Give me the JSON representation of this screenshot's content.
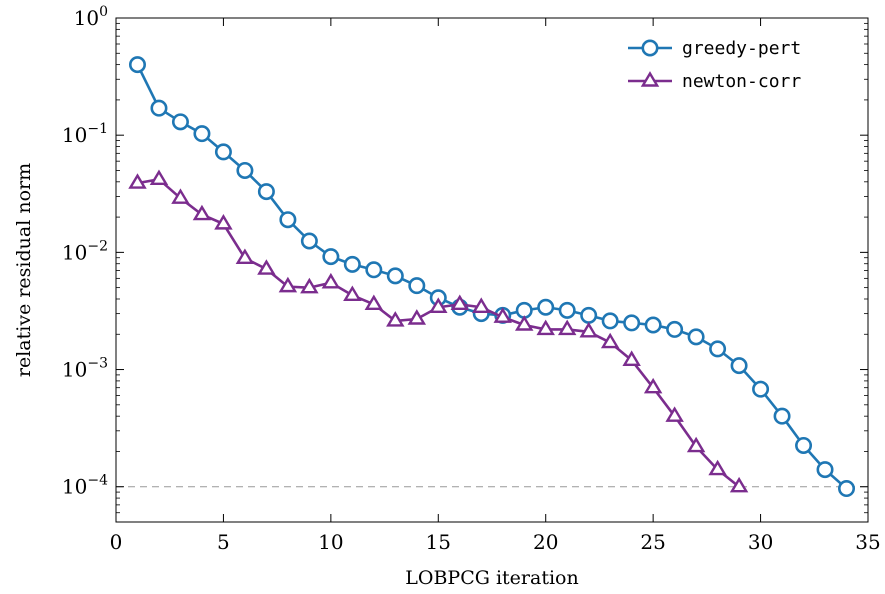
{
  "chart_data": {
    "type": "line",
    "xlabel": "LOBPCG iteration",
    "ylabel": "relative residual norm",
    "xlim": [
      0,
      35
    ],
    "ylim": [
      5e-05,
      1
    ],
    "yscale": "log",
    "xticks": [
      0,
      5,
      10,
      15,
      20,
      25,
      30,
      35
    ],
    "yticks": [
      {
        "value": 0.0001,
        "base": "10",
        "exp": "−4"
      },
      {
        "value": 0.001,
        "base": "10",
        "exp": "−3"
      },
      {
        "value": 0.01,
        "base": "10",
        "exp": "−2"
      },
      {
        "value": 0.1,
        "base": "10",
        "exp": "−1"
      },
      {
        "value": 1,
        "base": "10",
        "exp": "0"
      }
    ],
    "reference_line": {
      "y": 0.0001,
      "style": "dashed",
      "color": "#999999"
    },
    "legend": "top-right",
    "grid": false,
    "series": [
      {
        "name": "greedy-pert",
        "color": "#1f77b4",
        "marker": "circle",
        "x": [
          1,
          2,
          3,
          4,
          5,
          6,
          7,
          8,
          9,
          10,
          11,
          12,
          13,
          14,
          15,
          16,
          17,
          18,
          19,
          20,
          21,
          22,
          23,
          24,
          25,
          26,
          27,
          28,
          29,
          30,
          31,
          32,
          33,
          34
        ],
        "y": [
          0.4,
          0.17,
          0.13,
          0.103,
          0.072,
          0.05,
          0.033,
          0.019,
          0.0125,
          0.0092,
          0.0079,
          0.0071,
          0.0063,
          0.0052,
          0.0041,
          0.0034,
          0.003,
          0.0029,
          0.0032,
          0.0034,
          0.0032,
          0.0029,
          0.0026,
          0.0025,
          0.0024,
          0.0022,
          0.0019,
          0.0015,
          0.00108,
          0.00068,
          0.0004,
          0.000225,
          0.00014,
          9.65e-05
        ]
      },
      {
        "name": "newton-corr",
        "color": "#7b2d8e",
        "marker": "triangle",
        "x": [
          1,
          2,
          3,
          4,
          5,
          6,
          7,
          8,
          9,
          10,
          11,
          12,
          13,
          14,
          15,
          16,
          17,
          18,
          19,
          20,
          21,
          22,
          23,
          24,
          25,
          26,
          27,
          28,
          29
        ],
        "y": [
          0.039,
          0.042,
          0.029,
          0.021,
          0.0175,
          0.0089,
          0.0072,
          0.0051,
          0.005,
          0.0055,
          0.0043,
          0.0036,
          0.0026,
          0.0027,
          0.0034,
          0.0036,
          0.0034,
          0.0028,
          0.0024,
          0.0022,
          0.0022,
          0.0021,
          0.0017,
          0.0012,
          0.0007,
          0.0004,
          0.00022,
          0.00014,
          0.0001
        ]
      }
    ]
  }
}
